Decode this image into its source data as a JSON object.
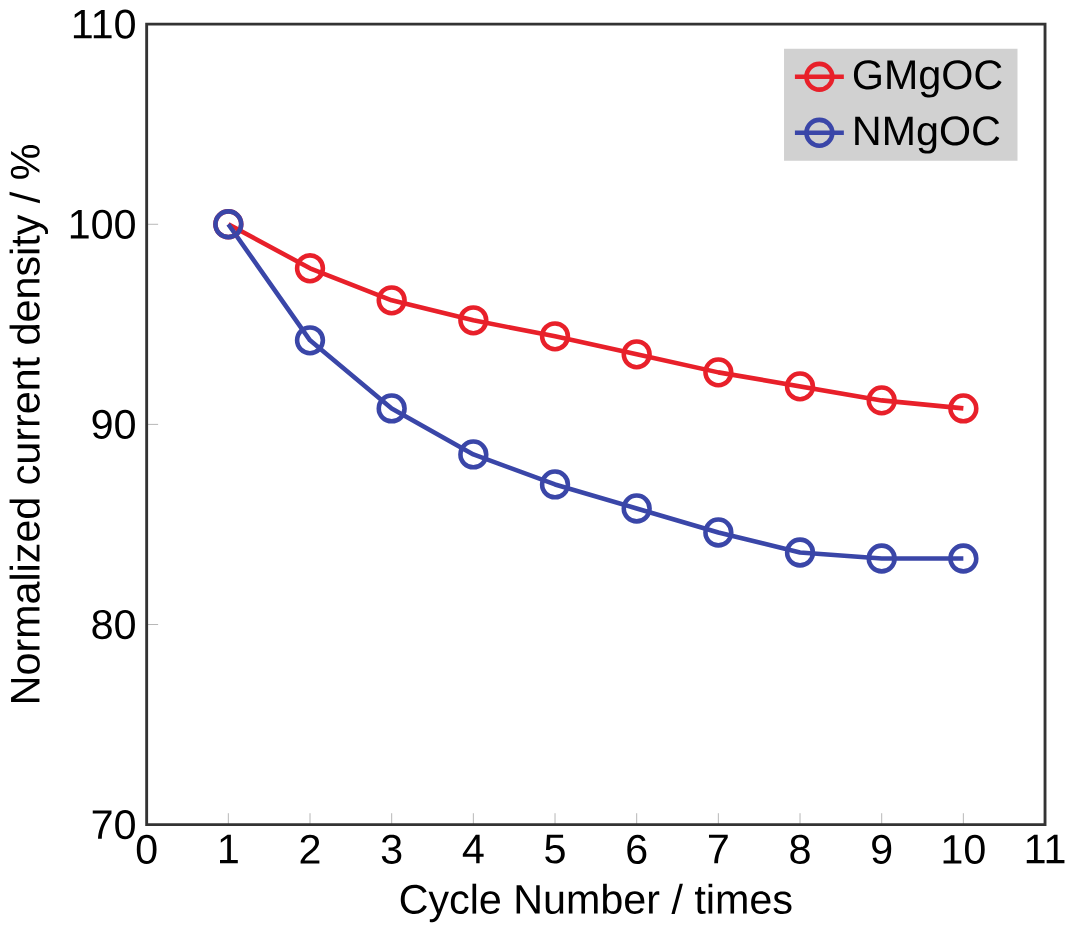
{
  "chart_data": {
    "type": "line",
    "xlabel": "Cycle Number / times",
    "ylabel": "Normalized current density / %",
    "x": [
      1,
      2,
      3,
      4,
      5,
      6,
      7,
      8,
      9,
      10
    ],
    "series": [
      {
        "name": "GMgOC",
        "color": "#e8202a",
        "values": [
          100,
          97.8,
          96.2,
          95.2,
          94.4,
          93.5,
          92.6,
          91.9,
          91.2,
          90.8
        ]
      },
      {
        "name": "NMgOC",
        "color": "#3a46a8",
        "values": [
          100,
          94.2,
          90.8,
          88.5,
          87.0,
          85.8,
          84.6,
          83.6,
          83.3,
          83.3
        ]
      }
    ],
    "xlim": [
      0,
      11
    ],
    "xticks": [
      0,
      1,
      2,
      3,
      4,
      5,
      6,
      7,
      8,
      9,
      10,
      11
    ],
    "ylim": [
      70,
      110
    ],
    "yticks": [
      70,
      80,
      90,
      100,
      110
    ],
    "grid": false,
    "legend": "top right",
    "marker": "circle",
    "line_style": "solid"
  }
}
